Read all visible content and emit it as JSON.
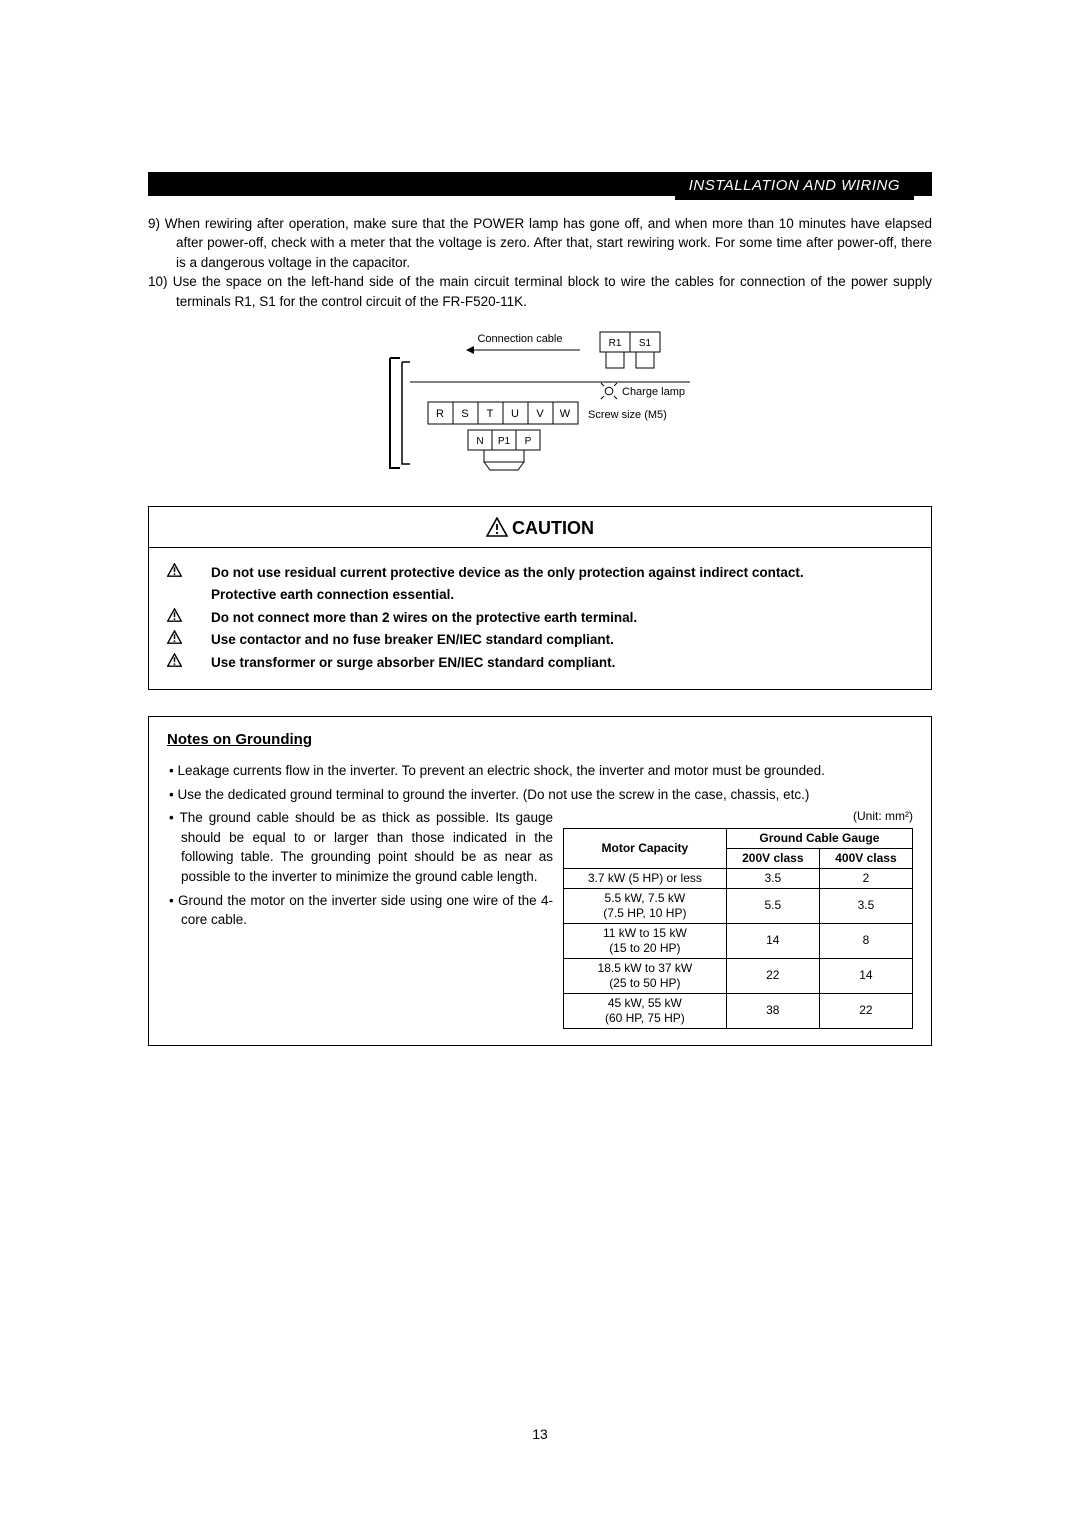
{
  "header": {
    "title": "INSTALLATION AND WIRING"
  },
  "body": {
    "item9": "9) When rewiring after operation, make sure that the POWER lamp has gone off, and when more than 10 minutes have elapsed after power-off, check with a meter that the voltage is zero. After that, start rewiring work. For some time after power-off, there is a dangerous voltage in the capacitor.",
    "item10": "10) Use the space on the left-hand side of the main circuit terminal block to wire the cables for connection of the power supply terminals R1, S1 for the control circuit of the FR-F520-11K."
  },
  "diagram": {
    "connection_cable": "Connection cable",
    "r1": "R1",
    "s1": "S1",
    "charge_lamp": "Charge lamp",
    "screw_size": "Screw size (M5)",
    "terms": [
      "R",
      "S",
      "T",
      "U",
      "V",
      "W"
    ],
    "terms_bottom": [
      "N",
      "P1",
      "P"
    ]
  },
  "caution": {
    "title": "CAUTION",
    "lines": [
      "Do not use residual current protective device as the only protection against indirect contact.",
      "Protective earth connection essential.",
      "Do not connect more than 2 wires on the protective earth terminal.",
      "Use contactor and no fuse breaker EN/IEC standard compliant.",
      "Use transformer or surge absorber EN/IEC standard compliant."
    ]
  },
  "notes": {
    "title": "Notes on Grounding",
    "bullets_top": [
      "Leakage currents flow in the inverter. To prevent an electric shock, the inverter and motor must be grounded.",
      "Use the dedicated ground terminal to ground the inverter. (Do not use the screw in the case, chassis, etc.)"
    ],
    "bullets_left": [
      "The ground cable should be as thick as possible. Its gauge should be equal to or larger than those indicated in the following table. The grounding point should be as near as possible to the inverter to minimize the ground cable length.",
      "Ground the motor on the inverter side using one wire of the 4-core cable."
    ],
    "unit_label": "(Unit: mm²)",
    "table": {
      "h_motor": "Motor Capacity",
      "h_gauge": "Ground Cable Gauge",
      "h_200": "200V class",
      "h_400": "400V class",
      "rows": [
        {
          "cap": "3.7 kW (5 HP) or less",
          "v200": "3.5",
          "v400": "2"
        },
        {
          "cap": "5.5 kW, 7.5 kW\n(7.5 HP, 10 HP)",
          "v200": "5.5",
          "v400": "3.5"
        },
        {
          "cap": "11 kW to 15 kW\n(15 to 20 HP)",
          "v200": "14",
          "v400": "8"
        },
        {
          "cap": "18.5 kW to 37 kW\n(25 to 50 HP)",
          "v200": "22",
          "v400": "14"
        },
        {
          "cap": "45 kW, 55 kW\n(60 HP, 75 HP)",
          "v200": "38",
          "v400": "22"
        }
      ]
    }
  },
  "page_number": "13"
}
